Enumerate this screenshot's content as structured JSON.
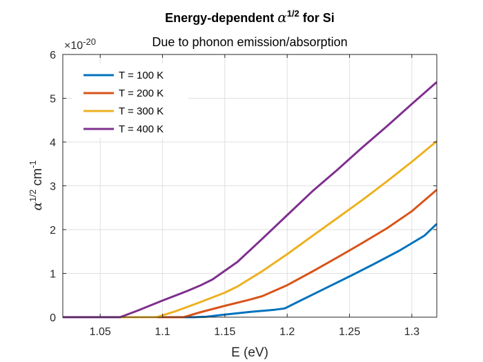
{
  "chart_data": {
    "type": "line",
    "title_prefix": "Energy-dependent ",
    "title_symbol": "α",
    "title_exponent": "1/2",
    "title_suffix": " for Si",
    "subtitle": "Due to phonon emission/absorption",
    "xlabel": "E (eV)",
    "ylabel_symbol": "α",
    "ylabel_exponent": "1/2",
    "ylabel_unit": " cm",
    "ylabel_unit_exponent": "-1",
    "y_exponent_base": "×10",
    "y_exponent_power": "-20",
    "xlim": [
      1.02,
      1.32
    ],
    "ylim": [
      0,
      6
    ],
    "x_ticks": [
      1.05,
      1.1,
      1.15,
      1.2,
      1.25,
      1.3
    ],
    "x_tick_labels": [
      "1.05",
      "1.1",
      "1.15",
      "1.2",
      "1.25",
      "1.3"
    ],
    "y_ticks": [
      0,
      1,
      2,
      3,
      4,
      5,
      6
    ],
    "y_tick_labels": [
      "0",
      "1",
      "2",
      "3",
      "4",
      "5",
      "6"
    ],
    "grid": true,
    "legend_position": "top-left",
    "series": [
      {
        "name": "T = 100 K",
        "color": "#0072BD",
        "x": [
          1.02,
          1.125,
          1.135,
          1.15,
          1.17,
          1.19,
          1.198,
          1.21,
          1.23,
          1.25,
          1.27,
          1.29,
          1.31,
          1.32
        ],
        "y": [
          0,
          0,
          0.01,
          0.06,
          0.12,
          0.17,
          0.2,
          0.37,
          0.65,
          0.93,
          1.22,
          1.52,
          1.86,
          2.13
        ]
      },
      {
        "name": "T = 200 K",
        "color": "#D95319",
        "x": [
          1.02,
          1.117,
          1.13,
          1.15,
          1.17,
          1.18,
          1.2,
          1.22,
          1.24,
          1.26,
          1.28,
          1.3,
          1.32
        ],
        "y": [
          0,
          0,
          0.11,
          0.26,
          0.4,
          0.48,
          0.73,
          1.04,
          1.36,
          1.69,
          2.03,
          2.42,
          2.91
        ]
      },
      {
        "name": "T = 300 K",
        "color": "#EDB120",
        "x": [
          1.02,
          1.095,
          1.11,
          1.13,
          1.15,
          1.16,
          1.18,
          1.2,
          1.22,
          1.24,
          1.26,
          1.28,
          1.3,
          1.32
        ],
        "y": [
          0,
          0,
          0.13,
          0.34,
          0.56,
          0.7,
          1.05,
          1.44,
          1.85,
          2.26,
          2.67,
          3.1,
          3.55,
          4.02
        ]
      },
      {
        "name": "T = 400 K",
        "color": "#7E2F8E",
        "x": [
          1.02,
          1.066,
          1.08,
          1.1,
          1.12,
          1.13,
          1.14,
          1.16,
          1.18,
          1.2,
          1.22,
          1.24,
          1.26,
          1.28,
          1.3,
          1.32
        ],
        "y": [
          0,
          0,
          0.15,
          0.38,
          0.6,
          0.72,
          0.86,
          1.26,
          1.79,
          2.33,
          2.87,
          3.36,
          3.87,
          4.36,
          4.87,
          5.37
        ]
      }
    ]
  }
}
